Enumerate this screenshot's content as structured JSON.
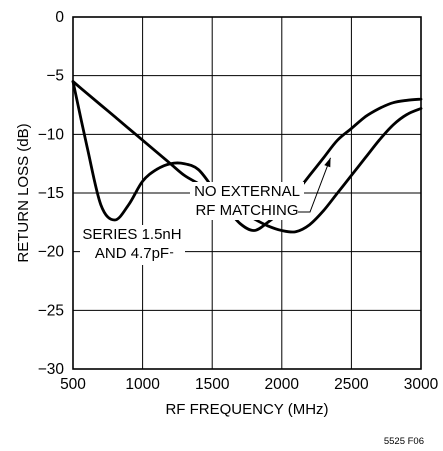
{
  "chart_data": {
    "type": "line",
    "xlabel": "RF FREQUENCY (MHz)",
    "ylabel": "RETURN LOSS (dB)",
    "xlim": [
      500,
      3000
    ],
    "ylim": [
      -30,
      0
    ],
    "xticks": [
      500,
      1000,
      1500,
      2000,
      2500,
      3000
    ],
    "yticks": [
      0,
      -5,
      -10,
      -15,
      -20,
      -25,
      -30
    ],
    "xtick_labels": [
      "500",
      "1000",
      "1500",
      "2000",
      "2500",
      "3000"
    ],
    "ytick_labels": [
      "0",
      "−5",
      "−10",
      "−15",
      "−20",
      "−25",
      "−30"
    ],
    "grid": true,
    "legend": "none",
    "series": [
      {
        "x": [
          500,
          600,
          700,
          800,
          900,
          1000,
          1100,
          1200,
          1300,
          1400,
          1500,
          1600,
          1700,
          1800,
          1900,
          2000,
          2100,
          2200,
          2300,
          2400,
          2500,
          2600,
          2700,
          2800,
          2900,
          3000
        ],
        "y": [
          -5.5,
          -6.5,
          -7.5,
          -8.5,
          -9.5,
          -10.5,
          -11.5,
          -12.5,
          -13.5,
          -14.2,
          -15.0,
          -15.8,
          -16.5,
          -17.2,
          -17.8,
          -18.2,
          -18.3,
          -17.7,
          -16.5,
          -15.0,
          -13.5,
          -12.0,
          -10.5,
          -9.2,
          -8.3,
          -7.8
        ]
      },
      {
        "x": [
          500,
          600,
          700,
          800,
          900,
          1000,
          1100,
          1200,
          1300,
          1400,
          1500,
          1600,
          1700,
          1800,
          1900,
          2000,
          2100,
          2200,
          2300,
          2400,
          2500,
          2600,
          2700,
          2800,
          2900,
          3000
        ],
        "y": [
          -5.5,
          -11.0,
          -16.0,
          -17.3,
          -16.0,
          -14.0,
          -13.0,
          -12.5,
          -12.5,
          -13.0,
          -14.5,
          -16.2,
          -17.6,
          -18.2,
          -17.5,
          -16.5,
          -15.0,
          -13.5,
          -12.0,
          -10.5,
          -9.5,
          -8.5,
          -7.8,
          -7.3,
          -7.1,
          -7.0
        ]
      }
    ],
    "annotations": [
      {
        "lines": [
          "NO EXTERNAL",
          "RF MATCHING"
        ],
        "points_to": [
          2350,
          -12.0
        ]
      },
      {
        "lines": [
          "SERIES 1.5nH",
          "AND 4.7pF"
        ],
        "points_to": [
          1220,
          -20.1
        ]
      }
    ],
    "figure_id": "5525 F06"
  }
}
